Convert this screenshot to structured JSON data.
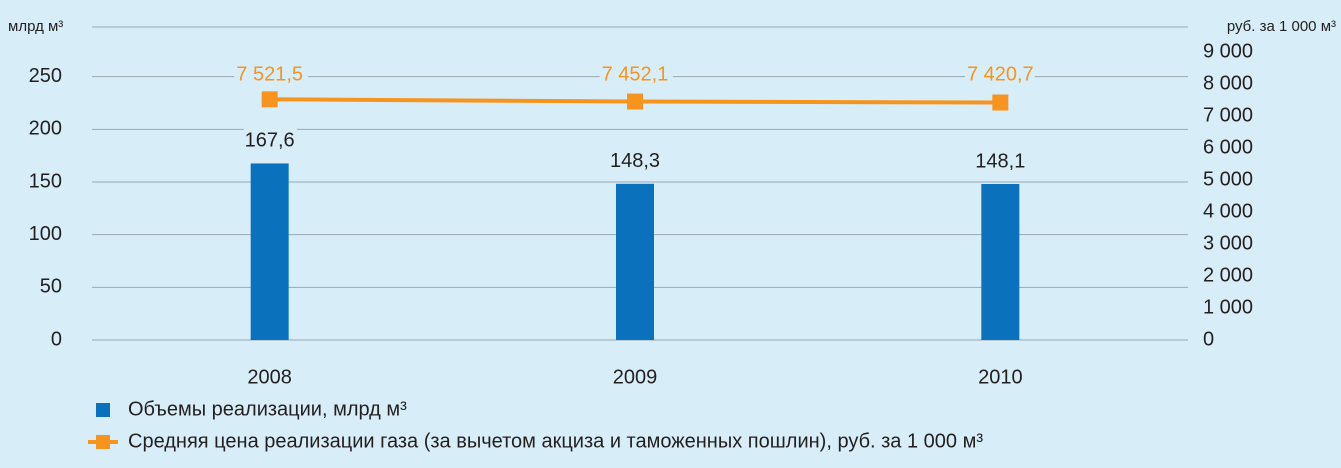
{
  "chart_data": {
    "type": "bar_line",
    "y_label": "млрд м³",
    "y2_label": "руб. за 1 000 м³",
    "categories": [
      "2008",
      "2009",
      "2010"
    ],
    "ylim": [
      0,
      300
    ],
    "yticks": [
      0,
      50,
      100,
      150,
      200,
      250
    ],
    "y2lim": [
      0,
      9000
    ],
    "y2ticks": [
      0,
      {
        "value": 1000,
        "label": "1 000"
      },
      {
        "value": 2000,
        "label": "2 000"
      },
      {
        "value": 3000,
        "label": "3 000"
      },
      {
        "value": 4000,
        "label": "4 000"
      },
      {
        "value": 5000,
        "label": "5 000"
      },
      {
        "value": 6000,
        "label": "6 000"
      },
      {
        "value": 7000,
        "label": "7 000"
      },
      {
        "value": 8000,
        "label": "8 000"
      },
      {
        "value": 9000,
        "label": "9 000"
      }
    ],
    "grid": true,
    "series": [
      {
        "name": "Объемы реализации, млрд м³",
        "type": "bar",
        "color": "#0a72bd",
        "values": [
          167.6,
          148.3,
          148.1
        ],
        "value_labels": [
          "167,6",
          "148,3",
          "148,1"
        ]
      },
      {
        "name": "Средняя цена реализации газа (за вычетом акциза и таможенных пошлин), руб. за 1 000 м³",
        "type": "line",
        "axis": "y2",
        "color": "#f7941d",
        "values": [
          7521.5,
          7452.1,
          7420.7
        ],
        "value_labels": [
          "7 521,5",
          "7 452,1",
          "7 420,7"
        ]
      }
    ]
  }
}
